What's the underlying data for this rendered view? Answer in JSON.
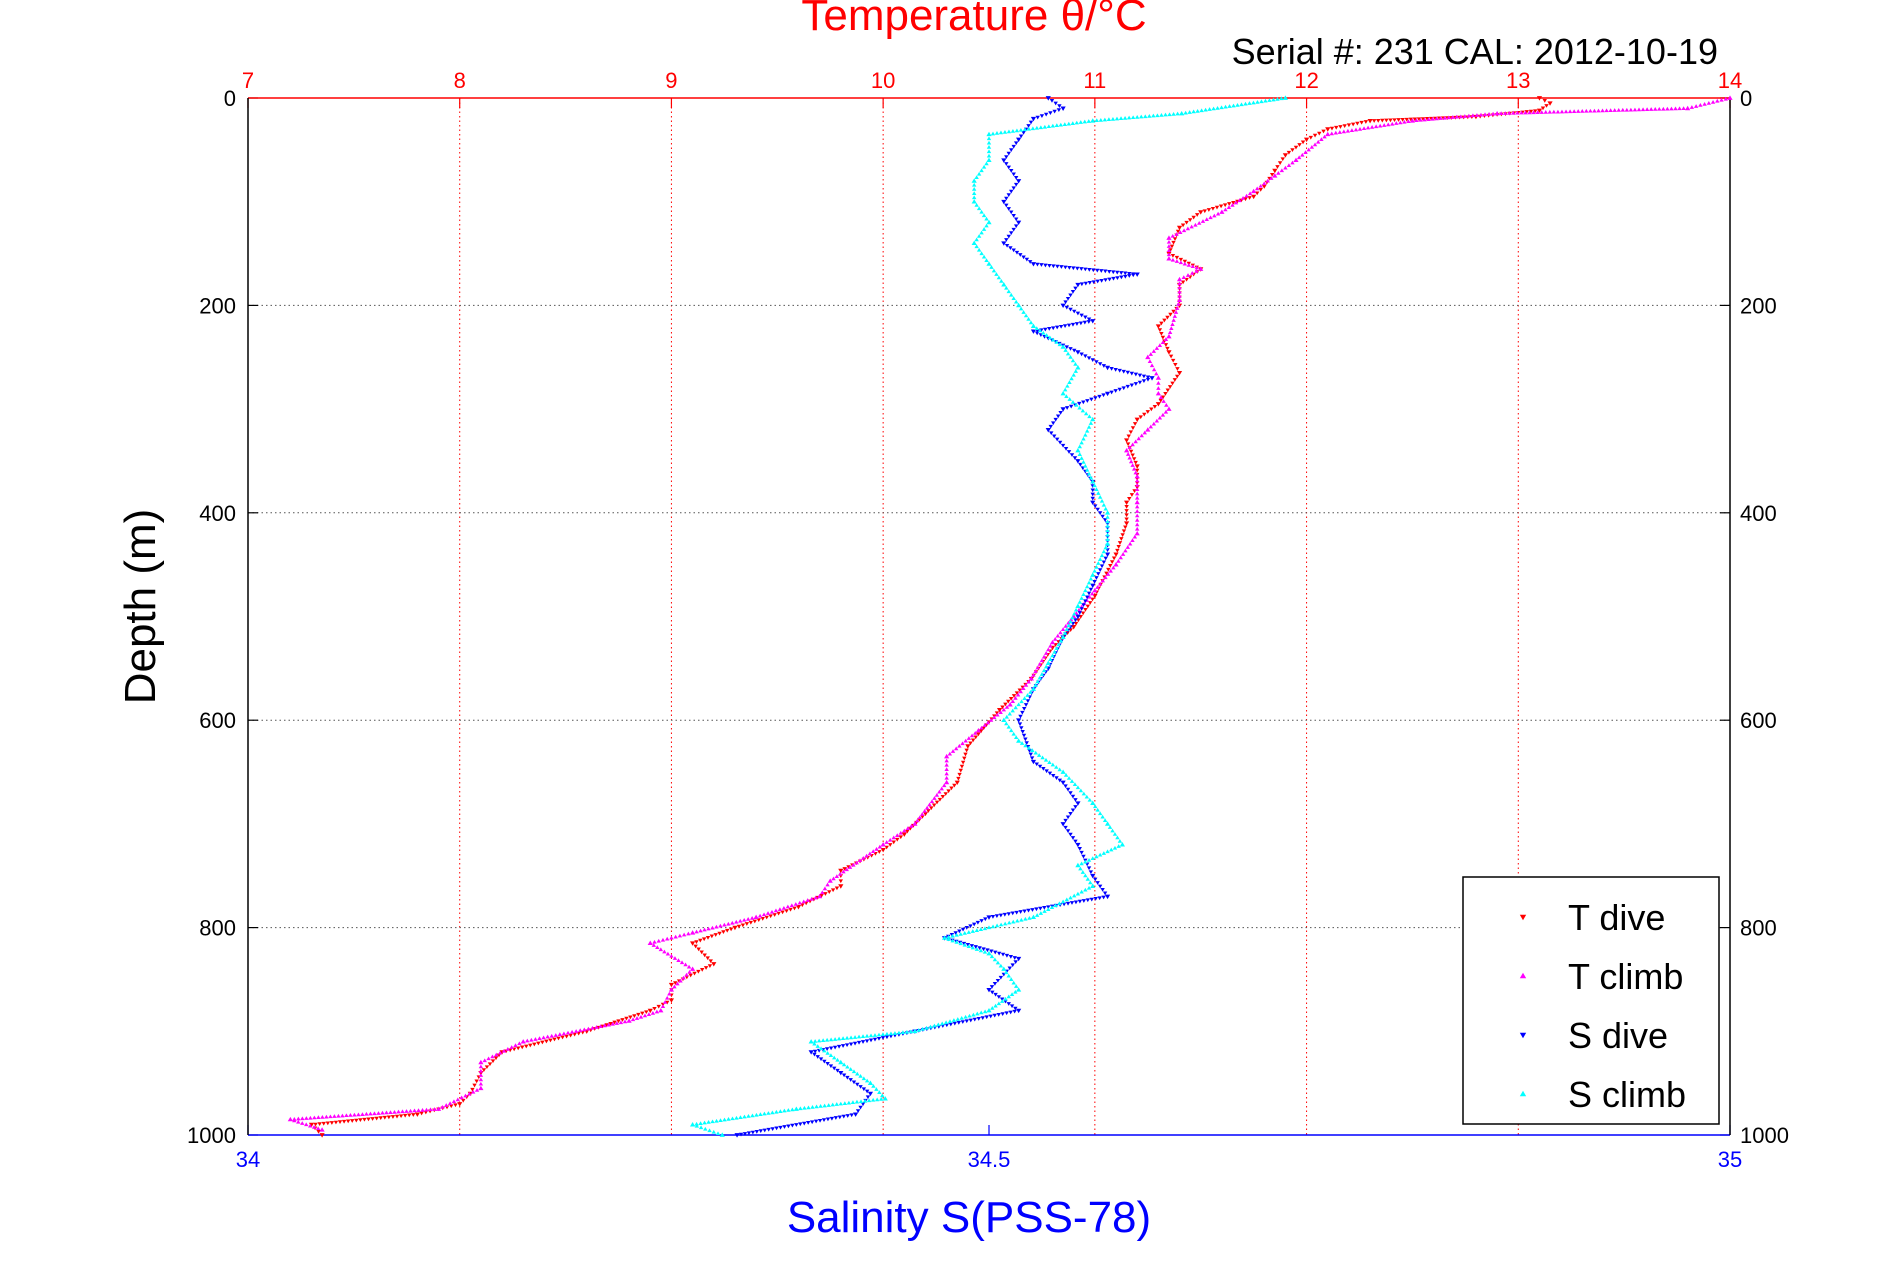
{
  "chart_data": {
    "type": "scatter",
    "title": "Temperature θ/°C",
    "subtitle": "Serial #: 231  CAL: 2012-10-19",
    "xlabel": "Salinity S(PSS-78)",
    "ylabel": "Depth (m)",
    "x_top": {
      "min": 7,
      "max": 14,
      "ticks": [
        7,
        8,
        9,
        10,
        11,
        12,
        13,
        14
      ],
      "color": "#ff0000"
    },
    "x_bottom": {
      "min": 34,
      "max": 35,
      "ticks": [
        "34",
        "34.5",
        "35"
      ],
      "tick_values": [
        34,
        34.5,
        35
      ],
      "color": "#0000ff"
    },
    "y": {
      "min": 0,
      "max": 1000,
      "ticks": [
        0,
        200,
        400,
        600,
        800,
        1000
      ],
      "reversed": true
    },
    "grid": true,
    "legend_position": "bottom-right",
    "series": [
      {
        "name": "T dive",
        "axis": "top",
        "color": "#ff0000",
        "marker": "triangle-down",
        "points": [
          [
            13.1,
            0
          ],
          [
            13.15,
            5
          ],
          [
            13.1,
            12
          ],
          [
            12.8,
            18
          ],
          [
            12.3,
            22
          ],
          [
            12.1,
            30
          ],
          [
            12.0,
            40
          ],
          [
            11.9,
            55
          ],
          [
            11.85,
            70
          ],
          [
            11.8,
            85
          ],
          [
            11.75,
            95
          ],
          [
            11.5,
            110
          ],
          [
            11.4,
            125
          ],
          [
            11.35,
            150
          ],
          [
            11.5,
            165
          ],
          [
            11.4,
            180
          ],
          [
            11.4,
            200
          ],
          [
            11.3,
            220
          ],
          [
            11.35,
            245
          ],
          [
            11.4,
            265
          ],
          [
            11.3,
            295
          ],
          [
            11.2,
            310
          ],
          [
            11.15,
            330
          ],
          [
            11.2,
            355
          ],
          [
            11.2,
            375
          ],
          [
            11.15,
            390
          ],
          [
            11.15,
            410
          ],
          [
            11.1,
            440
          ],
          [
            11.0,
            480
          ],
          [
            10.9,
            510
          ],
          [
            10.8,
            530
          ],
          [
            10.7,
            560
          ],
          [
            10.55,
            590
          ],
          [
            10.4,
            625
          ],
          [
            10.35,
            660
          ],
          [
            10.2,
            690
          ],
          [
            10.1,
            710
          ],
          [
            10.0,
            725
          ],
          [
            9.8,
            745
          ],
          [
            9.8,
            760
          ],
          [
            9.6,
            780
          ],
          [
            9.3,
            800
          ],
          [
            9.1,
            815
          ],
          [
            9.2,
            835
          ],
          [
            9.0,
            855
          ],
          [
            9.0,
            870
          ],
          [
            8.9,
            880
          ],
          [
            8.6,
            900
          ],
          [
            8.2,
            920
          ],
          [
            8.1,
            940
          ],
          [
            8.05,
            960
          ],
          [
            8.0,
            970
          ],
          [
            7.8,
            980
          ],
          [
            7.3,
            990
          ],
          [
            7.35,
            1000
          ]
        ]
      },
      {
        "name": "T climb",
        "axis": "top",
        "color": "#ff00ff",
        "marker": "triangle-up",
        "points": [
          [
            14.0,
            0
          ],
          [
            13.8,
            10
          ],
          [
            12.9,
            15
          ],
          [
            12.5,
            22
          ],
          [
            12.1,
            35
          ],
          [
            11.95,
            60
          ],
          [
            11.85,
            75
          ],
          [
            11.75,
            90
          ],
          [
            11.6,
            110
          ],
          [
            11.35,
            135
          ],
          [
            11.35,
            155
          ],
          [
            11.5,
            165
          ],
          [
            11.4,
            175
          ],
          [
            11.4,
            195
          ],
          [
            11.35,
            230
          ],
          [
            11.25,
            250
          ],
          [
            11.3,
            270
          ],
          [
            11.3,
            285
          ],
          [
            11.35,
            300
          ],
          [
            11.25,
            320
          ],
          [
            11.15,
            340
          ],
          [
            11.2,
            365
          ],
          [
            11.2,
            390
          ],
          [
            11.2,
            420
          ],
          [
            11.1,
            450
          ],
          [
            11.0,
            475
          ],
          [
            10.9,
            500
          ],
          [
            10.8,
            525
          ],
          [
            10.7,
            560
          ],
          [
            10.6,
            585
          ],
          [
            10.45,
            610
          ],
          [
            10.3,
            635
          ],
          [
            10.3,
            660
          ],
          [
            10.15,
            700
          ],
          [
            10.0,
            720
          ],
          [
            9.75,
            755
          ],
          [
            9.7,
            770
          ],
          [
            9.4,
            790
          ],
          [
            9.1,
            805
          ],
          [
            8.9,
            815
          ],
          [
            9.1,
            840
          ],
          [
            9.0,
            860
          ],
          [
            8.95,
            880
          ],
          [
            8.8,
            890
          ],
          [
            8.3,
            910
          ],
          [
            8.1,
            930
          ],
          [
            8.1,
            955
          ],
          [
            7.9,
            975
          ],
          [
            7.2,
            985
          ],
          [
            7.35,
            995
          ]
        ]
      },
      {
        "name": "S dive",
        "axis": "bottom",
        "color": "#0000ff",
        "marker": "triangle-down",
        "points": [
          [
            34.54,
            0
          ],
          [
            34.55,
            10
          ],
          [
            34.53,
            20
          ],
          [
            34.52,
            40
          ],
          [
            34.51,
            60
          ],
          [
            34.52,
            80
          ],
          [
            34.51,
            100
          ],
          [
            34.52,
            120
          ],
          [
            34.51,
            140
          ],
          [
            34.53,
            160
          ],
          [
            34.6,
            170
          ],
          [
            34.56,
            180
          ],
          [
            34.55,
            200
          ],
          [
            34.57,
            215
          ],
          [
            34.53,
            225
          ],
          [
            34.56,
            245
          ],
          [
            34.58,
            260
          ],
          [
            34.61,
            270
          ],
          [
            34.58,
            285
          ],
          [
            34.55,
            300
          ],
          [
            34.54,
            320
          ],
          [
            34.56,
            350
          ],
          [
            34.57,
            370
          ],
          [
            34.57,
            390
          ],
          [
            34.58,
            410
          ],
          [
            34.58,
            440
          ],
          [
            34.57,
            470
          ],
          [
            34.56,
            500
          ],
          [
            34.55,
            520
          ],
          [
            34.54,
            550
          ],
          [
            34.53,
            570
          ],
          [
            34.52,
            600
          ],
          [
            34.53,
            640
          ],
          [
            34.55,
            660
          ],
          [
            34.56,
            680
          ],
          [
            34.55,
            700
          ],
          [
            34.56,
            720
          ],
          [
            34.57,
            750
          ],
          [
            34.58,
            770
          ],
          [
            34.5,
            790
          ],
          [
            34.47,
            810
          ],
          [
            34.52,
            830
          ],
          [
            34.5,
            860
          ],
          [
            34.52,
            880
          ],
          [
            34.45,
            900
          ],
          [
            34.38,
            920
          ],
          [
            34.4,
            940
          ],
          [
            34.42,
            960
          ],
          [
            34.41,
            980
          ],
          [
            34.33,
            1000
          ]
        ]
      },
      {
        "name": "S climb",
        "axis": "bottom",
        "color": "#00ffff",
        "marker": "triangle-up",
        "points": [
          [
            34.7,
            0
          ],
          [
            34.63,
            15
          ],
          [
            34.57,
            22
          ],
          [
            34.5,
            35
          ],
          [
            34.5,
            60
          ],
          [
            34.49,
            80
          ],
          [
            34.49,
            100
          ],
          [
            34.5,
            120
          ],
          [
            34.49,
            140
          ],
          [
            34.5,
            160
          ],
          [
            34.51,
            180
          ],
          [
            34.52,
            200
          ],
          [
            34.53,
            220
          ],
          [
            34.55,
            240
          ],
          [
            34.56,
            260
          ],
          [
            34.55,
            285
          ],
          [
            34.57,
            310
          ],
          [
            34.56,
            340
          ],
          [
            34.57,
            370
          ],
          [
            34.58,
            400
          ],
          [
            34.58,
            430
          ],
          [
            34.57,
            460
          ],
          [
            34.56,
            490
          ],
          [
            34.55,
            520
          ],
          [
            34.54,
            545
          ],
          [
            34.53,
            570
          ],
          [
            34.51,
            600
          ],
          [
            34.52,
            620
          ],
          [
            34.55,
            650
          ],
          [
            34.57,
            680
          ],
          [
            34.58,
            700
          ],
          [
            34.59,
            720
          ],
          [
            34.56,
            740
          ],
          [
            34.57,
            760
          ],
          [
            34.53,
            790
          ],
          [
            34.47,
            810
          ],
          [
            34.5,
            825
          ],
          [
            34.51,
            840
          ],
          [
            34.52,
            860
          ],
          [
            34.5,
            880
          ],
          [
            34.45,
            900
          ],
          [
            34.38,
            910
          ],
          [
            34.4,
            930
          ],
          [
            34.42,
            950
          ],
          [
            34.43,
            965
          ],
          [
            34.37,
            975
          ],
          [
            34.3,
            990
          ],
          [
            34.32,
            1000
          ]
        ]
      }
    ]
  }
}
